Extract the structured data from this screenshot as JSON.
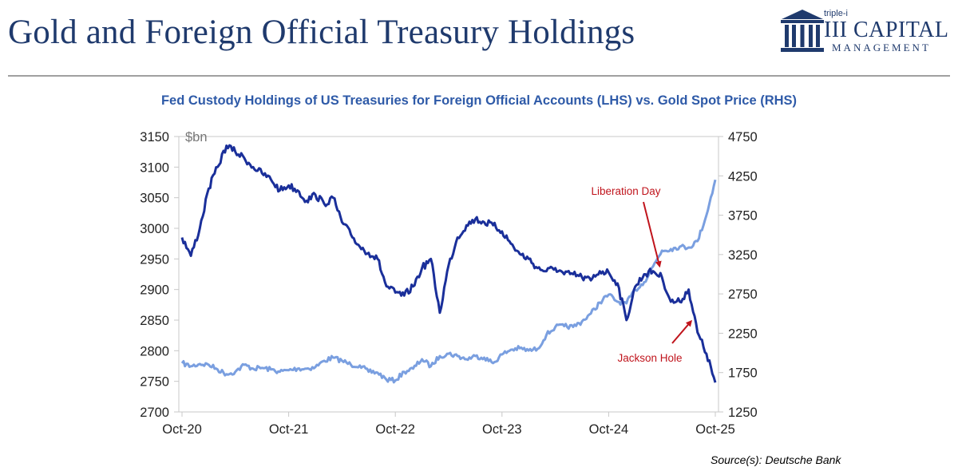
{
  "header": {
    "title": "Gold and Foreign Official Treasury Holdings"
  },
  "logo": {
    "small": "triple-i",
    "main": "III CAPITAL",
    "sub": "MANAGEMENT",
    "color": "#1f3a6d"
  },
  "footer": {
    "source": "Source(s): Deutsche Bank"
  },
  "chart_data": {
    "type": "line",
    "title": "Fed Custody Holdings of US Treasuries for Foreign Official Accounts (LHS) vs. Gold Spot Price (RHS)",
    "ylabel_unit": "$bn",
    "x_tick_labels": [
      "Oct-20",
      "Oct-21",
      "Oct-22",
      "Oct-23",
      "Oct-24",
      "Oct-25"
    ],
    "ylim_left": [
      2700,
      3150
    ],
    "yticks_left": [
      3150,
      3100,
      3050,
      3000,
      2950,
      2900,
      2850,
      2800,
      2750,
      2700
    ],
    "ylim_right": [
      1250,
      4750
    ],
    "yticks_right": [
      4750,
      4250,
      3750,
      3250,
      2750,
      2250,
      1750,
      1250
    ],
    "grid": false,
    "series": [
      {
        "name": "Fed Custody Holdings of US Treasuries (LHS)",
        "axis": "left",
        "color": "#1a2f9a",
        "points": [
          [
            "2020-10",
            2985
          ],
          [
            "2020-11",
            2955
          ],
          [
            "2020-12",
            3000
          ],
          [
            "2021-01",
            3065
          ],
          [
            "2021-02",
            3100
          ],
          [
            "2021-03",
            3135
          ],
          [
            "2021-04",
            3125
          ],
          [
            "2021-05",
            3115
          ],
          [
            "2021-06",
            3100
          ],
          [
            "2021-07",
            3090
          ],
          [
            "2021-08",
            3080
          ],
          [
            "2021-09",
            3062
          ],
          [
            "2021-10",
            3070
          ],
          [
            "2021-11",
            3062
          ],
          [
            "2021-12",
            3045
          ],
          [
            "2022-01",
            3055
          ],
          [
            "2022-02",
            3040
          ],
          [
            "2022-03",
            3050
          ],
          [
            "2022-04",
            3010
          ],
          [
            "2022-05",
            2990
          ],
          [
            "2022-06",
            2970
          ],
          [
            "2022-07",
            2960
          ],
          [
            "2022-08",
            2950
          ],
          [
            "2022-09",
            2905
          ],
          [
            "2022-10",
            2895
          ],
          [
            "2022-11",
            2890
          ],
          [
            "2022-12",
            2905
          ],
          [
            "2023-01",
            2935
          ],
          [
            "2023-02",
            2950
          ],
          [
            "2023-03",
            2862
          ],
          [
            "2023-04",
            2940
          ],
          [
            "2023-05",
            2985
          ],
          [
            "2023-06",
            3005
          ],
          [
            "2023-07",
            3015
          ],
          [
            "2023-08",
            3010
          ],
          [
            "2023-09",
            3005
          ],
          [
            "2023-10",
            2995
          ],
          [
            "2023-11",
            2975
          ],
          [
            "2023-12",
            2958
          ],
          [
            "2024-01",
            2950
          ],
          [
            "2024-02",
            2935
          ],
          [
            "2024-03",
            2930
          ],
          [
            "2024-04",
            2935
          ],
          [
            "2024-05",
            2925
          ],
          [
            "2024-06",
            2925
          ],
          [
            "2024-07",
            2920
          ],
          [
            "2024-08",
            2915
          ],
          [
            "2024-09",
            2930
          ],
          [
            "2024-10",
            2928
          ],
          [
            "2024-11",
            2910
          ],
          [
            "2024-12",
            2850
          ],
          [
            "2025-01",
            2905
          ],
          [
            "2025-02",
            2925
          ],
          [
            "2025-03",
            2930
          ],
          [
            "2025-04",
            2920
          ],
          [
            "2025-05",
            2880
          ],
          [
            "2025-06",
            2880
          ],
          [
            "2025-07",
            2900
          ],
          [
            "2025-08",
            2830
          ],
          [
            "2025-09",
            2795
          ],
          [
            "2025-10",
            2748
          ]
        ]
      },
      {
        "name": "Gold Spot Price (RHS)",
        "axis": "right",
        "color": "#7a9fe0",
        "points": [
          [
            "2020-10",
            1870
          ],
          [
            "2020-11",
            1830
          ],
          [
            "2020-12",
            1860
          ],
          [
            "2021-01",
            1850
          ],
          [
            "2021-02",
            1790
          ],
          [
            "2021-03",
            1730
          ],
          [
            "2021-04",
            1760
          ],
          [
            "2021-05",
            1850
          ],
          [
            "2021-06",
            1800
          ],
          [
            "2021-07",
            1810
          ],
          [
            "2021-08",
            1790
          ],
          [
            "2021-09",
            1760
          ],
          [
            "2021-10",
            1780
          ],
          [
            "2021-11",
            1800
          ],
          [
            "2021-12",
            1800
          ],
          [
            "2022-01",
            1820
          ],
          [
            "2022-02",
            1900
          ],
          [
            "2022-03",
            1940
          ],
          [
            "2022-04",
            1900
          ],
          [
            "2022-05",
            1850
          ],
          [
            "2022-06",
            1840
          ],
          [
            "2022-07",
            1760
          ],
          [
            "2022-08",
            1750
          ],
          [
            "2022-09",
            1660
          ],
          [
            "2022-10",
            1650
          ],
          [
            "2022-11",
            1760
          ],
          [
            "2022-12",
            1800
          ],
          [
            "2023-01",
            1920
          ],
          [
            "2023-02",
            1830
          ],
          [
            "2023-03",
            1960
          ],
          [
            "2023-04",
            1990
          ],
          [
            "2023-05",
            1960
          ],
          [
            "2023-06",
            1920
          ],
          [
            "2023-07",
            1960
          ],
          [
            "2023-08",
            1940
          ],
          [
            "2023-09",
            1870
          ],
          [
            "2023-10",
            1980
          ],
          [
            "2023-11",
            2040
          ],
          [
            "2023-12",
            2060
          ],
          [
            "2024-01",
            2030
          ],
          [
            "2024-02",
            2050
          ],
          [
            "2024-03",
            2230
          ],
          [
            "2024-04",
            2330
          ],
          [
            "2024-05",
            2340
          ],
          [
            "2024-06",
            2330
          ],
          [
            "2024-07",
            2400
          ],
          [
            "2024-08",
            2500
          ],
          [
            "2024-09",
            2640
          ],
          [
            "2024-10",
            2740
          ],
          [
            "2024-11",
            2650
          ],
          [
            "2024-12",
            2630
          ],
          [
            "2025-01",
            2800
          ],
          [
            "2025-02",
            2900
          ],
          [
            "2025-03",
            3100
          ],
          [
            "2025-04",
            3300
          ],
          [
            "2025-05",
            3320
          ],
          [
            "2025-06",
            3350
          ],
          [
            "2025-07",
            3340
          ],
          [
            "2025-08",
            3420
          ],
          [
            "2025-09",
            3750
          ],
          [
            "2025-10",
            4200
          ]
        ]
      }
    ],
    "annotations": [
      {
        "text": "Liberation Day",
        "target_date": "2025-04",
        "series": "left"
      },
      {
        "text": "Jackson Hole",
        "target_date": "2025-08",
        "series": "left"
      }
    ],
    "annotation_color": "#c0141c"
  }
}
